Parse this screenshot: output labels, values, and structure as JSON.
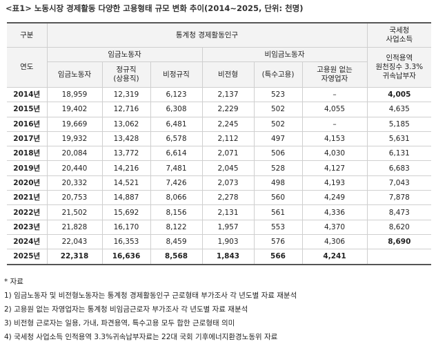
{
  "title": "<표1> 노동시장 경제활동 다양한 고용형태 규모 변화 추이(2014~2025, 단위: 천명)",
  "table": {
    "header": {
      "gubun": "구분",
      "statistics": "통계청 경제활동인구",
      "tax": "국세청\n사업소득",
      "year": "연도",
      "wage": "임금노동자",
      "nonwage": "비임금노동자",
      "tax_sub": "인적용역\n원천징수 3.3%\n귀속납부자",
      "columns": [
        "임금노동자",
        "정규직\n(상용직)",
        "비정규직",
        "비전형",
        "(특수고용)",
        "고용원 없는\n자영업자"
      ]
    },
    "rows": [
      [
        "2014년",
        "18,959",
        "12,319",
        "6,123",
        "2,137",
        "523",
        "–",
        "4,005"
      ],
      [
        "2015년",
        "19,402",
        "12,716",
        "6,308",
        "2,229",
        "502",
        "4,055",
        "4,635"
      ],
      [
        "2016년",
        "19,669",
        "13,062",
        "6,481",
        "2,245",
        "502",
        "–",
        "5,185"
      ],
      [
        "2017년",
        "19,932",
        "13,428",
        "6,578",
        "2,112",
        "497",
        "4,153",
        "5,631"
      ],
      [
        "2018년",
        "20,084",
        "13,772",
        "6,614",
        "2,071",
        "506",
        "4,030",
        "6,131"
      ],
      [
        "2019년",
        "20,440",
        "14,216",
        "7,481",
        "2,045",
        "528",
        "4,127",
        "6,683"
      ],
      [
        "2020년",
        "20,332",
        "14,521",
        "7,426",
        "2,073",
        "498",
        "4,193",
        "7,043"
      ],
      [
        "2021년",
        "20,753",
        "14,887",
        "8,066",
        "2,278",
        "560",
        "4,249",
        "7,878"
      ],
      [
        "2022년",
        "21,502",
        "15,692",
        "8,156",
        "2,131",
        "561",
        "4,336",
        "8,473"
      ],
      [
        "2023년",
        "21,828",
        "16,170",
        "8,122",
        "1,957",
        "553",
        "4,370",
        "8,620"
      ],
      [
        "2024년",
        "22,043",
        "16,353",
        "8,459",
        "1,903",
        "576",
        "4,306",
        "8,690"
      ],
      [
        "2025년",
        "22,318",
        "16,636",
        "8,568",
        "1,843",
        "566",
        "4,241",
        null
      ]
    ]
  },
  "notes": {
    "heading": "* 자료",
    "items": [
      "1) 임금노동자 및 비전형노동자는 통계청 경제활동인구 근로형태 부가조사 각 년도별 자료 재분석",
      "2) 고용원 없는 자영업자는 통계청 비임금근로자 부가조사 각 년도별 자료 재분석",
      "3) 비전형 근로자는 일용, 가내, 파견용역, 특수고용 모두 합한 근로형태 의미",
      "4) 국세청 사업소득 인적용역 3.3%귀속납부자료는 22대 국회 기후에너지환경노동위 자료"
    ]
  }
}
